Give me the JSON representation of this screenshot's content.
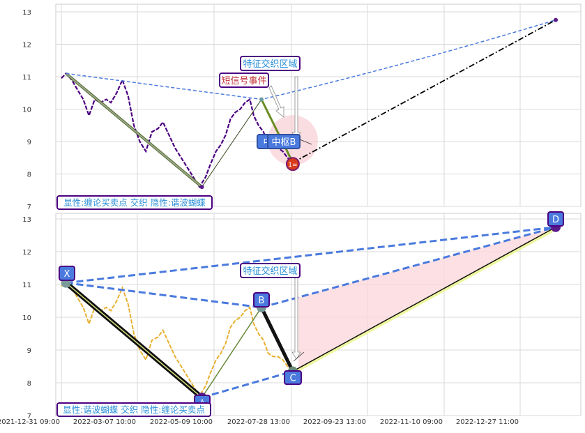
{
  "chart_data": [
    {
      "type": "line",
      "panel": "top",
      "ylim": [
        7,
        13.2
      ],
      "yticks": [
        "7",
        "8",
        "9",
        "10",
        "11",
        "12",
        "13"
      ],
      "grid": true,
      "price_series": {
        "color": "#4b0082",
        "start": "2021-12-31",
        "end": "2022-07-29",
        "values": [
          10.95,
          11.1,
          10.9,
          10.6,
          10.3,
          9.8,
          10.3,
          10.2,
          10.3,
          10.2,
          10.5,
          10.9,
          10.4,
          9.5,
          9.0,
          8.7,
          9.3,
          9.4,
          9.6,
          9.2,
          8.8,
          8.5,
          8.2,
          7.9,
          7.6,
          7.9,
          8.3,
          8.7,
          8.9,
          9.2,
          9.7,
          9.9,
          10.0,
          10.2,
          10.3,
          9.8,
          9.5,
          9.3,
          8.9,
          8.8,
          8.8,
          8.7,
          8.5,
          8.35
        ]
      },
      "pivots": [
        {
          "date": "2022-01-04",
          "value": 11.1
        },
        {
          "date": "2022-04-29",
          "value": 7.6
        },
        {
          "date": "2022-06-27",
          "value": 10.3
        },
        {
          "date": "2022-07-29",
          "value": 8.35
        },
        {
          "date": "2023-01-18",
          "value": 12.75
        }
      ],
      "annotations": {
        "zone": "特征交织区域",
        "event": "短信号事件",
        "pivot_hidden": "中",
        "pivot": "中枢B",
        "marker": "1=",
        "legend": "显性:缠论买卖点 交织 隐性:谐波蝴蝶"
      }
    },
    {
      "type": "line",
      "panel": "bottom",
      "ylim": [
        7,
        13.2
      ],
      "yticks": [
        "7",
        "8",
        "9",
        "10",
        "11",
        "12",
        "13"
      ],
      "grid": true,
      "price_color": "#e8b030",
      "points": [
        {
          "label": "X",
          "date": "2022-01-04",
          "value": 11.05
        },
        {
          "label": "A",
          "date": "2022-04-29",
          "value": 7.55
        },
        {
          "label": "B",
          "date": "2022-06-27",
          "value": 10.3
        },
        {
          "label": "C",
          "date": "2022-07-29",
          "value": 8.35
        },
        {
          "label": "D",
          "date": "2023-01-18",
          "value": 12.75
        }
      ],
      "annotations": {
        "zone": "特征交织区域",
        "legend": "显性:谐波蝴蝶 交织 隐性:缠论买卖点"
      }
    }
  ],
  "xaxis": {
    "ticks": [
      "2021-12-31 09:00",
      "2022-03-07 10:00",
      "2022-05-09 10:00",
      "2022-07-28 13:00",
      "2022-09-23 13:00",
      "2022-11-10 09:00",
      "2022-12-27 11:00"
    ],
    "tick_dates": [
      "2021-12-31",
      "2022-03-07",
      "2022-05-09",
      "2022-07-28",
      "2022-09-23",
      "2022-11-10",
      "2022-12-27"
    ]
  },
  "colors": {
    "dashed_blue": "#4a7ade",
    "box_border": "#4b0082",
    "box_fill": "#4a7ade",
    "label_text": "#2a8fd8",
    "event_text": "#c0303a",
    "pink": "#f7c6cc"
  }
}
